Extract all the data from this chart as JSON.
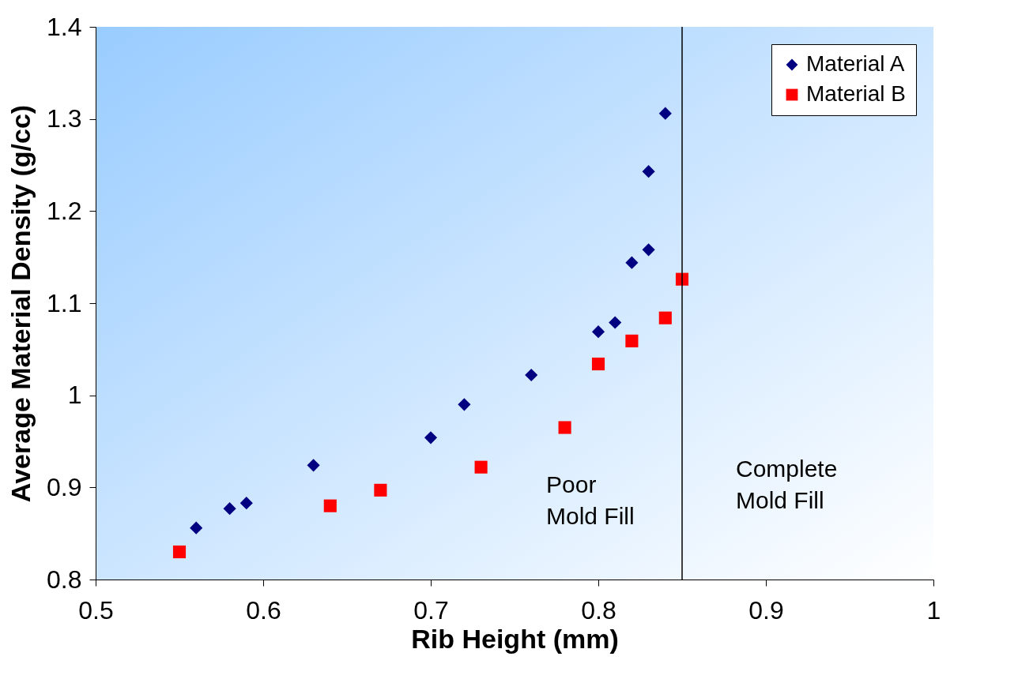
{
  "chart_data": {
    "type": "scatter",
    "xlabel": "Rib Height (mm)",
    "ylabel": "Average Material Density (g/cc)",
    "xlim": [
      0.5,
      1
    ],
    "xticks": [
      0.5,
      0.6,
      0.7,
      0.8,
      0.9,
      1
    ],
    "ylim": [
      0.8,
      1.4
    ],
    "yticks": [
      0.8,
      0.9,
      1,
      1.1,
      1.2,
      1.3,
      1.4
    ],
    "grid": false,
    "legend": "top right",
    "series": [
      {
        "name": "Material A",
        "color": "#000080",
        "marker": "diamond",
        "x": [
          0.56,
          0.58,
          0.59,
          0.63,
          0.7,
          0.72,
          0.76,
          0.8,
          0.81,
          0.82,
          0.83,
          0.83,
          0.84
        ],
        "values": [
          0.856,
          0.877,
          0.883,
          0.924,
          0.954,
          0.99,
          1.022,
          1.069,
          1.079,
          1.144,
          1.158,
          1.243,
          1.306
        ]
      },
      {
        "name": "Material B",
        "color": "#ff0000",
        "marker": "square",
        "x": [
          0.55,
          0.64,
          0.67,
          0.73,
          0.78,
          0.8,
          0.82,
          0.84,
          0.85
        ],
        "values": [
          0.83,
          0.88,
          0.897,
          0.922,
          0.965,
          1.034,
          1.059,
          1.084,
          1.126
        ]
      }
    ],
    "ref_lines": [
      {
        "axis": "x",
        "value": 0.85,
        "color": "#000000"
      }
    ],
    "annotations": [
      "Poor\nMold Fill",
      "Complete\nMold Fill"
    ]
  }
}
